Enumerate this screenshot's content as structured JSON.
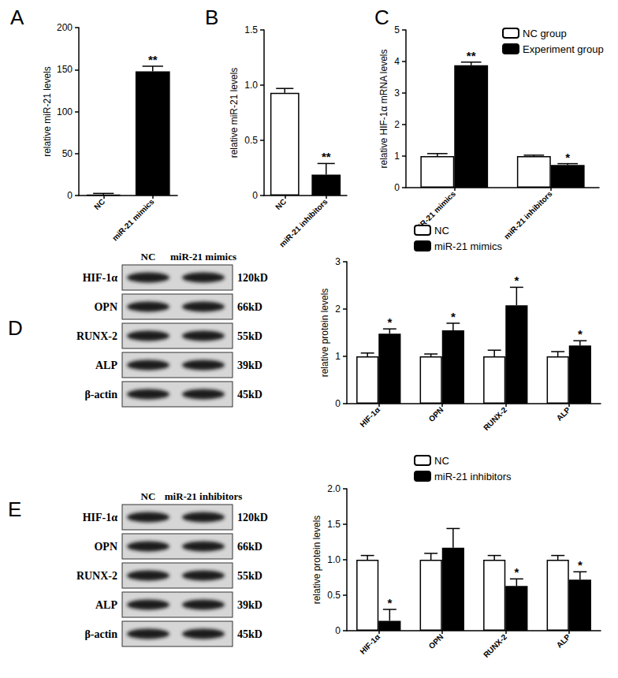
{
  "chart_data": [
    {
      "type": "bar",
      "title": "A",
      "categories": [
        "NC",
        "miR-21 mimics"
      ],
      "values": [
        1,
        148
      ],
      "errors": [
        1.5,
        6
      ],
      "annotations": [
        null,
        "**"
      ],
      "colors": [
        "#ffffff",
        "#000000"
      ],
      "y_label": "relative miR-21 levels",
      "ylim": [
        0,
        200
      ],
      "yticks": [
        0,
        50,
        100,
        150,
        200
      ],
      "grid": false
    },
    {
      "type": "bar",
      "title": "B",
      "categories": [
        "NC",
        "miR-21 inhibitors"
      ],
      "values": [
        0.93,
        0.19
      ],
      "errors": [
        0.04,
        0.1
      ],
      "annotations": [
        null,
        "**"
      ],
      "colors": [
        "#ffffff",
        "#000000"
      ],
      "y_label": "relative miR-21 levels",
      "ylim": [
        0,
        1.5
      ],
      "yticks": [
        0,
        0.5,
        {
          "value": 1,
          "label": "1.0"
        },
        1.5
      ],
      "grid": false
    },
    {
      "type": "bar",
      "title": "C",
      "categories": [
        "miR-21 mimics",
        "miR-21 inhibitors"
      ],
      "series": [
        {
          "name": "NC group",
          "color": "#ffffff",
          "values": [
            1.0,
            1.0
          ],
          "errors": [
            0.08,
            0.03
          ]
        },
        {
          "name": "Experiment group",
          "color": "#000000",
          "values": [
            3.88,
            0.72
          ],
          "errors": [
            0.1,
            0.04
          ],
          "annotations": [
            "**",
            "*"
          ]
        }
      ],
      "y_label": "relative HIF-1α mRNA levels",
      "ylim": [
        0,
        5
      ],
      "yticks": [
        0,
        1,
        2,
        3,
        4,
        5
      ],
      "grid": false,
      "legend": "top-right"
    },
    {
      "type": "bar",
      "categories": [
        "HIF-1α",
        "OPN",
        "RUNX-2",
        "ALP"
      ],
      "series": [
        {
          "name": "NC",
          "color": "#ffffff",
          "values": [
            1.0,
            1.0,
            1.0,
            1.0
          ],
          "errors": [
            0.07,
            0.05,
            0.13,
            0.1
          ]
        },
        {
          "name": "miR-21 mimics",
          "color": "#000000",
          "values": [
            1.48,
            1.55,
            2.08,
            1.23
          ],
          "errors": [
            0.1,
            0.15,
            0.38,
            0.1
          ],
          "annotations": [
            "*",
            "*",
            "*",
            "*"
          ]
        }
      ],
      "y_label": "relative protein levels",
      "ylim": [
        0,
        3
      ],
      "yticks": [
        0,
        1,
        2,
        3
      ],
      "grid": false,
      "legend": "top"
    },
    {
      "type": "bar",
      "categories": [
        "HIF-1α",
        "OPN",
        "RUNX-2",
        "ALP"
      ],
      "series": [
        {
          "name": "NC",
          "color": "#ffffff",
          "values": [
            1.0,
            1.0,
            1.0,
            1.0
          ],
          "errors": [
            0.06,
            0.09,
            0.06,
            0.06
          ]
        },
        {
          "name": "miR-21 inhibitors",
          "color": "#000000",
          "values": [
            0.14,
            1.17,
            0.63,
            0.72
          ],
          "errors": [
            0.16,
            0.27,
            0.1,
            0.11
          ],
          "annotations": [
            "*",
            null,
            "*",
            "*"
          ]
        }
      ],
      "y_label": "relative protein levels",
      "ylim": [
        0,
        2
      ],
      "yticks": [
        0,
        0.5,
        {
          "value": 1,
          "label": "1.0"
        },
        1.5,
        {
          "value": 2,
          "label": "2.0"
        }
      ],
      "grid": false,
      "legend": "top"
    }
  ],
  "blots": [
    {
      "title": "D",
      "lanes": [
        "NC",
        "miR-21 mimics"
      ],
      "rows": [
        {
          "label": "HIF-1α",
          "size": "120kD"
        },
        {
          "label": "OPN",
          "size": "66kD"
        },
        {
          "label": "RUNX-2",
          "size": "55kD"
        },
        {
          "label": "ALP",
          "size": "39kD"
        },
        {
          "label": "β-actin",
          "size": "45kD"
        }
      ]
    },
    {
      "title": "E",
      "lanes": [
        "NC",
        "miR-21 inhibitors"
      ],
      "rows": [
        {
          "label": "HIF-1α",
          "size": "120kD"
        },
        {
          "label": "OPN",
          "size": "66kD"
        },
        {
          "label": "RUNX-2",
          "size": "55kD"
        },
        {
          "label": "ALP",
          "size": "39kD"
        },
        {
          "label": "β-actin",
          "size": "45kD"
        }
      ]
    }
  ]
}
